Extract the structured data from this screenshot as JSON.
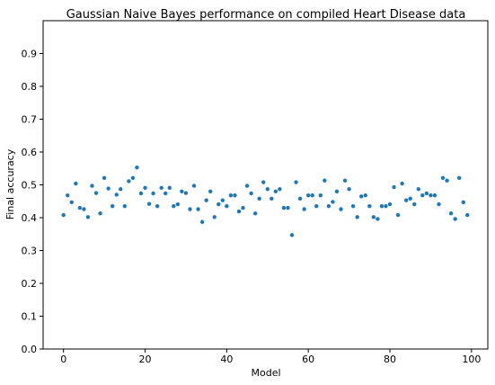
{
  "chart_data": {
    "type": "scatter",
    "title": "Gaussian Naive Bayes performance on compiled Heart Disease data",
    "xlabel": "Model",
    "ylabel": "Final accuracy",
    "xlim": [
      -5,
      104
    ],
    "ylim": [
      0.0,
      1.0
    ],
    "xticks": [
      0,
      20,
      40,
      60,
      80,
      100
    ],
    "xtick_labels": [
      "0",
      "20",
      "40",
      "60",
      "80",
      "100"
    ],
    "yticks": [
      0.0,
      0.1,
      0.2,
      0.3,
      0.4,
      0.5,
      0.6,
      0.7,
      0.8,
      0.9
    ],
    "ytick_labels": [
      "0.0",
      "0.1",
      "0.2",
      "0.3",
      "0.4",
      "0.5",
      "0.6",
      "0.7",
      "0.8",
      "0.9"
    ],
    "grid": false,
    "marker_color": "#1f77b4",
    "series": [
      {
        "x": [
          0,
          1,
          2,
          3,
          4,
          5,
          6,
          7,
          8,
          9,
          10,
          11,
          12,
          13,
          14,
          15,
          16,
          17,
          18,
          19,
          20,
          21,
          22,
          23,
          24,
          25,
          26,
          27,
          28,
          29,
          30,
          31,
          32,
          33,
          34,
          35,
          36,
          37,
          38,
          39,
          40,
          41,
          42,
          43,
          44,
          45,
          46,
          47,
          48,
          49,
          50,
          51,
          52,
          53,
          54,
          55,
          56,
          57,
          58,
          59,
          60,
          61,
          62,
          63,
          64,
          65,
          66,
          67,
          68,
          69,
          70,
          71,
          72,
          73,
          74,
          75,
          76,
          77,
          78,
          79,
          80,
          81,
          82,
          83,
          84,
          85,
          86,
          87,
          88,
          89,
          90,
          91,
          92,
          93,
          94,
          95,
          96,
          97,
          98,
          99
        ],
        "y": [
          0.408,
          0.468,
          0.447,
          0.504,
          0.43,
          0.426,
          0.402,
          0.497,
          0.475,
          0.413,
          0.521,
          0.489,
          0.435,
          0.47,
          0.487,
          0.435,
          0.511,
          0.521,
          0.553,
          0.474,
          0.491,
          0.442,
          0.474,
          0.435,
          0.491,
          0.474,
          0.491,
          0.435,
          0.441,
          0.48,
          0.475,
          0.426,
          0.497,
          0.426,
          0.387,
          0.453,
          0.48,
          0.402,
          0.441,
          0.453,
          0.435,
          0.468,
          0.468,
          0.419,
          0.43,
          0.497,
          0.474,
          0.413,
          0.458,
          0.508,
          0.487,
          0.458,
          0.48,
          0.487,
          0.43,
          0.43,
          0.347,
          0.508,
          0.458,
          0.426,
          0.468,
          0.468,
          0.435,
          0.468,
          0.513,
          0.435,
          0.448,
          0.48,
          0.426,
          0.513,
          0.487,
          0.435,
          0.402,
          0.465,
          0.468,
          0.435,
          0.402,
          0.396,
          0.435,
          0.435,
          0.441,
          0.493,
          0.408,
          0.504,
          0.453,
          0.458,
          0.441,
          0.487,
          0.468,
          0.474,
          0.468,
          0.468,
          0.441,
          0.521,
          0.513,
          0.413,
          0.396,
          0.521,
          0.447,
          0.408
        ]
      }
    ]
  }
}
